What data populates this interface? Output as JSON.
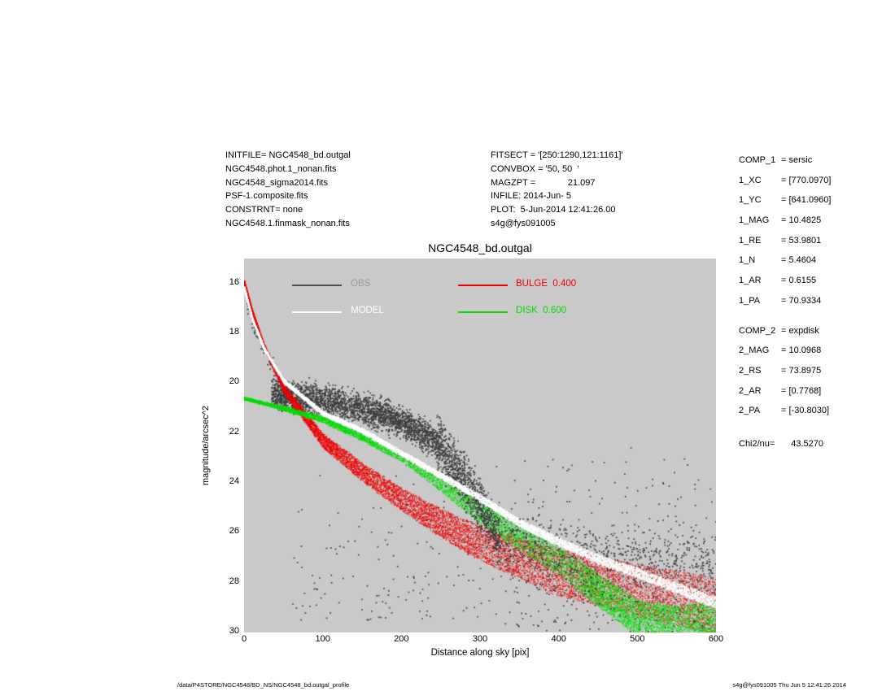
{
  "header": {
    "left_lines": [
      "INITFILE= NGC4548_bd.outgal",
      "NGC4548.phot.1_nonan.fits",
      "NGC4548_sigma2014.fits",
      "PSF-1.composite.fits",
      "CONSTRNT= none",
      "NGC4548.1.finmask_nonan.fits"
    ],
    "mid_lines": [
      "FITSECT = '[250:1290,121:1161]'",
      "CONVBOX = '50, 50  '",
      "MAGZPT =             21.097",
      "INFILE: 2014-Jun- 5",
      "PLOT:  5-Jun-2014 12:41:26.00",
      "s4g@fys091005"
    ]
  },
  "params": {
    "comp1": [
      {
        "key": "COMP_1",
        "val": "= sersic"
      },
      {
        "key": "1_XC",
        "val": "= [770.0970]"
      },
      {
        "key": "1_YC",
        "val": "= [641.0960]"
      },
      {
        "key": "1_MAG",
        "val": "= 10.4825"
      },
      {
        "key": "1_RE",
        "val": "= 53.9801"
      },
      {
        "key": "1_N",
        "val": "= 5.4604"
      },
      {
        "key": "1_AR",
        "val": "= 0.6155"
      },
      {
        "key": "1_PA",
        "val": "= 70.9334"
      }
    ],
    "comp2": [
      {
        "key": "COMP_2",
        "val": "= expdisk"
      },
      {
        "key": "2_MAG",
        "val": "= 10.0968"
      },
      {
        "key": "2_RS",
        "val": "= 73.8975"
      },
      {
        "key": "2_AR",
        "val": "= [0.7768]"
      },
      {
        "key": "2_PA",
        "val": "= [-30.8030]"
      }
    ],
    "chi": {
      "key": "Chi2/nu=",
      "val": "    43.5270"
    }
  },
  "footer": {
    "left": "/data/P4STORE/NGC4548/BD_NS/NGC4548_bd.outgal_profile",
    "right": "s4g@fys091005  Thu Jun  5 12:41:26 2014"
  },
  "chart_data": {
    "type": "scatter",
    "title": "NGC4548_bd.outgal",
    "xlabel": "Distance along sky [pix]",
    "ylabel": "magnitude/arcsec^2",
    "xlim": [
      0,
      600
    ],
    "ylim_top": 15,
    "ylim_bottom": 30,
    "y_inverted_magnitude_axis": true,
    "xticks": [
      0,
      100,
      200,
      300,
      400,
      500,
      600
    ],
    "yticks": [
      16,
      18,
      20,
      22,
      24,
      26,
      28,
      30
    ],
    "grid": false,
    "plot_bg": "#c9c9c9",
    "legend": {
      "position": "top-left-inside",
      "entries": [
        {
          "label": "OBS",
          "line_color": "#4f4f4f",
          "text_color": "#9a9a9a"
        },
        {
          "label": "MODEL",
          "line_color": "#ffffff",
          "text_color": "#ffffff"
        },
        {
          "label": "BULGE  0.400",
          "line_color": "#ee0000",
          "text_color": "#ee0000"
        },
        {
          "label": "DISK  0.600",
          "line_color": "#00dd00",
          "text_color": "#00dd00"
        }
      ]
    },
    "series": [
      {
        "name": "BULGE",
        "color": "#ee0000",
        "alpha": 0.85,
        "size": 1.2,
        "count": 12000,
        "left_frac": 0.32,
        "left_pow": 2.6,
        "right_frac": 0,
        "right_from": 0,
        "center": [
          [
            0,
            15.95
          ],
          [
            10,
            17.1
          ],
          [
            25,
            18.5
          ],
          [
            50,
            20.2
          ],
          [
            100,
            22.3
          ],
          [
            150,
            23.55
          ],
          [
            200,
            24.65
          ],
          [
            250,
            25.6
          ],
          [
            300,
            26.4
          ],
          [
            350,
            27.0
          ],
          [
            400,
            27.6
          ],
          [
            450,
            27.9
          ],
          [
            500,
            28.3
          ],
          [
            550,
            28.6
          ],
          [
            600,
            28.95
          ]
        ],
        "halfwidth": [
          [
            0,
            0.04
          ],
          [
            100,
            0.28
          ],
          [
            200,
            0.45
          ],
          [
            300,
            0.7
          ],
          [
            400,
            0.95
          ],
          [
            500,
            1.05
          ],
          [
            600,
            1.15
          ]
        ]
      },
      {
        "name": "DISK",
        "color": "#00dd00",
        "alpha": 0.85,
        "size": 1.2,
        "count": 9000,
        "left_frac": 0.12,
        "left_pow": 1.8,
        "right_frac": 0.2,
        "right_from": 430,
        "center": [
          [
            0,
            20.6
          ],
          [
            50,
            21.0
          ],
          [
            100,
            21.45
          ],
          [
            150,
            22.15
          ],
          [
            200,
            22.9
          ],
          [
            250,
            24.0
          ],
          [
            300,
            25.2
          ],
          [
            350,
            26.2
          ],
          [
            400,
            27.1
          ],
          [
            450,
            28.3
          ],
          [
            500,
            29.4
          ],
          [
            550,
            29.75
          ],
          [
            600,
            29.6
          ]
        ],
        "halfwidth": [
          [
            0,
            0.04
          ],
          [
            150,
            0.15
          ],
          [
            300,
            0.42
          ],
          [
            450,
            0.65
          ],
          [
            600,
            0.9
          ]
        ]
      },
      {
        "name": "MODEL",
        "color": "#ffffff",
        "alpha": 0.95,
        "size": 1.4,
        "count": 8000,
        "left_frac": 0.32,
        "left_pow": 2.6,
        "right_frac": 0,
        "right_from": 0,
        "center": [
          [
            0,
            16.2
          ],
          [
            10,
            17.4
          ],
          [
            25,
            18.6
          ],
          [
            50,
            19.9
          ],
          [
            100,
            21.2
          ],
          [
            150,
            21.9
          ],
          [
            200,
            22.8
          ],
          [
            250,
            23.7
          ],
          [
            300,
            24.6
          ],
          [
            350,
            25.6
          ],
          [
            400,
            26.35
          ],
          [
            450,
            27.05
          ],
          [
            500,
            27.6
          ],
          [
            550,
            28.2
          ],
          [
            600,
            28.8
          ]
        ],
        "halfwidth": [
          [
            0,
            0.06
          ],
          [
            300,
            0.13
          ],
          [
            600,
            0.22
          ]
        ]
      }
    ],
    "obs": {
      "name": "OBS",
      "color": "#3d3d3d",
      "size": 1.7,
      "components": [
        {
          "type": "along_model",
          "x": [
            3,
            40
          ],
          "spread": 0.3,
          "count": 70,
          "late": false
        },
        {
          "type": "cloud",
          "x": [
            35,
            245
          ],
          "spread": 0.5,
          "count": 2600,
          "late": false,
          "center": [
            [
              35,
              20.4
            ],
            [
              60,
              20.5
            ],
            [
              100,
              20.7
            ],
            [
              140,
              20.95
            ],
            [
              180,
              21.3
            ],
            [
              215,
              21.8
            ],
            [
              245,
              22.4
            ]
          ]
        },
        {
          "type": "uniform",
          "x": [
            60,
            330
          ],
          "mag": [
            22.3,
            29.5
          ],
          "bias": 2.4,
          "count": 150,
          "late": false
        },
        {
          "type": "cloud",
          "x": [
            245,
            325
          ],
          "spread": 0.85,
          "count": 1000,
          "late": true,
          "center": [
            [
              245,
              22.4
            ],
            [
              265,
              23.2
            ],
            [
              285,
              24.2
            ],
            [
              305,
              25.2
            ],
            [
              325,
              26.2
            ]
          ]
        },
        {
          "type": "cloud",
          "x": [
            325,
            600
          ],
          "spread": 1.15,
          "count": 750,
          "late": true,
          "center": [
            [
              325,
              26.5
            ],
            [
              400,
              26.9
            ],
            [
              500,
              27.2
            ],
            [
              600,
              27.5
            ]
          ]
        },
        {
          "type": "uniform",
          "x": [
            330,
            600
          ],
          "mag": [
            22.5,
            30
          ],
          "bias": 1.7,
          "count": 320,
          "late": true
        }
      ]
    }
  }
}
